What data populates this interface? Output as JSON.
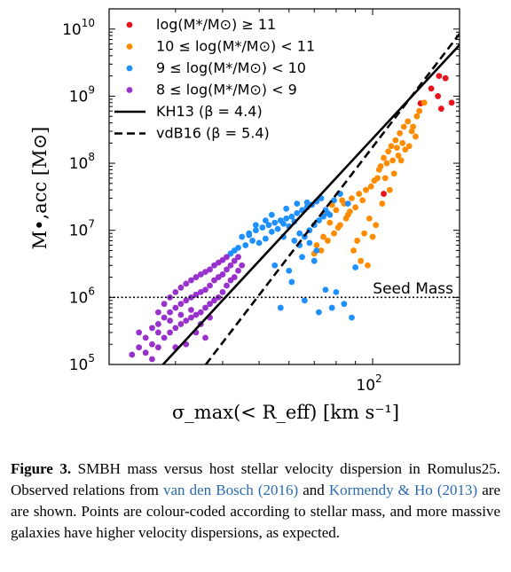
{
  "chart_data": {
    "type": "scatter",
    "title": "",
    "xlabel": "σ_max(< R_eff) [km s⁻¹]",
    "ylabel": "M•,acc [M⊙]",
    "x_scale": "log",
    "y_scale": "log",
    "xlim": [
      20,
      170
    ],
    "ylim": [
      100000,
      20000000000
    ],
    "x_ticks": [
      {
        "value": 100,
        "base": "10",
        "exp": "2"
      }
    ],
    "y_ticks": [
      {
        "value": 100000,
        "base": "10",
        "exp": "5"
      },
      {
        "value": 1000000,
        "base": "10",
        "exp": "6"
      },
      {
        "value": 10000000,
        "base": "10",
        "exp": "7"
      },
      {
        "value": 100000000,
        "base": "10",
        "exp": "8"
      },
      {
        "value": 1000000000,
        "base": "10",
        "exp": "9"
      },
      {
        "value": 10000000000,
        "base": "10",
        "exp": "10"
      }
    ],
    "grid": false,
    "legend_position": "top-left",
    "seed_mass": {
      "value": 1000000,
      "label": "Seed Mass"
    },
    "relations": [
      {
        "name": "KH13 (β = 4.4)",
        "style": "solid",
        "points": [
          [
            27.8,
            100000
          ],
          [
            170,
            5800000000
          ]
        ]
      },
      {
        "name": "vdB16 (β = 5.4)",
        "style": "dashed",
        "points": [
          [
            36.1,
            100000
          ],
          [
            170,
            8500000000
          ]
        ]
      }
    ],
    "series": [
      {
        "name": "log(M*/M⊙) ≥ 11",
        "color": "#e8141b",
        "points": [
          [
            150,
            2000000000
          ],
          [
            156,
            1850000000
          ],
          [
            162,
            800000000
          ],
          [
            143,
            1300000000
          ],
          [
            134,
            780000000
          ],
          [
            152,
            650000000
          ],
          [
            149,
            1000000000
          ],
          [
            107,
            35000000
          ]
        ]
      },
      {
        "name": "10 ≤ log(M*/M⊙) < 11",
        "color": "#ff8c00",
        "points": [
          [
            80,
            20000000
          ],
          [
            84,
            25000000
          ],
          [
            88,
            30000000
          ],
          [
            92,
            35000000
          ],
          [
            86,
            17000000
          ],
          [
            82,
            12000000
          ],
          [
            79,
            9000000
          ],
          [
            76,
            7000000
          ],
          [
            73,
            5000000
          ],
          [
            70,
            4500000
          ],
          [
            96,
            40000000
          ],
          [
            101,
            55000000
          ],
          [
            104,
            80000000
          ],
          [
            107,
            120000000
          ],
          [
            110,
            150000000
          ],
          [
            112,
            180000000
          ],
          [
            115,
            220000000
          ],
          [
            118,
            280000000
          ],
          [
            121,
            350000000
          ],
          [
            124,
            420000000
          ],
          [
            127,
            300000000
          ],
          [
            130,
            250000000
          ],
          [
            133,
            600000000
          ],
          [
            137,
            800000000
          ],
          [
            105,
            90000000
          ],
          [
            109,
            100000000
          ],
          [
            113,
            110000000
          ],
          [
            117,
            130000000
          ],
          [
            119,
            110000000
          ],
          [
            122,
            160000000
          ],
          [
            103,
            60000000
          ],
          [
            99,
            45000000
          ],
          [
            94,
            28000000
          ],
          [
            90,
            22000000
          ],
          [
            87,
            19000000
          ],
          [
            85,
            15000000
          ],
          [
            81,
            11000000
          ],
          [
            77,
            13000000
          ],
          [
            74,
            8000000
          ],
          [
            71,
            6000000
          ],
          [
            98,
            15000000
          ],
          [
            102,
            12000000
          ],
          [
            95,
            9000000
          ],
          [
            91,
            7000000
          ],
          [
            89,
            5000000
          ],
          [
            93,
            3500000
          ],
          [
            97,
            3000000
          ],
          [
            108,
            60000000
          ],
          [
            114,
            70000000
          ],
          [
            111,
            40000000
          ],
          [
            116,
            170000000
          ],
          [
            120,
            200000000
          ],
          [
            125,
            180000000
          ],
          [
            128,
            350000000
          ],
          [
            131,
            500000000
          ],
          [
            106,
            25000000
          ],
          [
            100,
            8000000
          ],
          [
            83,
            28000000
          ],
          [
            78,
            24000000
          ],
          [
            75,
            18000000
          ]
        ]
      },
      {
        "name": "9 ≤ log(M*/M⊙) < 10",
        "color": "#1e90ff",
        "points": [
          [
            45,
            8000000
          ],
          [
            47,
            9000000
          ],
          [
            49,
            10000000
          ],
          [
            51,
            11000000
          ],
          [
            53,
            12000000
          ],
          [
            55,
            13000000
          ],
          [
            57,
            14000000
          ],
          [
            59,
            15000000
          ],
          [
            61,
            16000000
          ],
          [
            63,
            18000000
          ],
          [
            65,
            20000000
          ],
          [
            67,
            22000000
          ],
          [
            69,
            24000000
          ],
          [
            71,
            27000000
          ],
          [
            73,
            30000000
          ],
          [
            75,
            20000000
          ],
          [
            77,
            17000000
          ],
          [
            48,
            7000000
          ],
          [
            50,
            6500000
          ],
          [
            52,
            7500000
          ],
          [
            54,
            9500000
          ],
          [
            56,
            10500000
          ],
          [
            58,
            12500000
          ],
          [
            60,
            11500000
          ],
          [
            62,
            13500000
          ],
          [
            64,
            9000000
          ],
          [
            66,
            8000000
          ],
          [
            68,
            10000000
          ],
          [
            70,
            12000000
          ],
          [
            72,
            14000000
          ],
          [
            74,
            16000000
          ],
          [
            76,
            18000000
          ],
          [
            44,
            5500000
          ],
          [
            46,
            6000000
          ],
          [
            42,
            4500000
          ],
          [
            43,
            5000000
          ],
          [
            55,
            3000000
          ],
          [
            60,
            2500000
          ],
          [
            65,
            4000000
          ],
          [
            70,
            3500000
          ],
          [
            57,
            700000
          ],
          [
            66,
            900000
          ],
          [
            72,
            600000
          ],
          [
            78,
            700000
          ],
          [
            84,
            800000
          ],
          [
            88,
            500000
          ],
          [
            61,
            1700000
          ],
          [
            75,
            1300000
          ],
          [
            80,
            1200000
          ],
          [
            90,
            2800000
          ],
          [
            86,
            25000000
          ],
          [
            82,
            35000000
          ],
          [
            79,
            28000000
          ],
          [
            59,
            21000000
          ],
          [
            63,
            25000000
          ],
          [
            67,
            26000000
          ],
          [
            54,
            17000000
          ],
          [
            52,
            14000000
          ],
          [
            49,
            12000000
          ],
          [
            47,
            8500000
          ],
          [
            58,
            8000000
          ],
          [
            62,
            7000000
          ],
          [
            64,
            6000000
          ],
          [
            68,
            6500000
          ],
          [
            71,
            5000000
          ]
        ]
      },
      {
        "name": "8 ≤ log(M*/M⊙) < 9",
        "color": "#9932cc",
        "points": [
          [
            25,
            150000
          ],
          [
            26,
            200000
          ],
          [
            27,
            180000
          ],
          [
            28,
            250000
          ],
          [
            29,
            300000
          ],
          [
            30,
            350000
          ],
          [
            31,
            400000
          ],
          [
            32,
            450000
          ],
          [
            33,
            500000
          ],
          [
            34,
            550000
          ],
          [
            35,
            600000
          ],
          [
            36,
            700000
          ],
          [
            37,
            800000
          ],
          [
            38,
            900000
          ],
          [
            39,
            1000000
          ],
          [
            40,
            1200000
          ],
          [
            41,
            1500000
          ],
          [
            42,
            1800000
          ],
          [
            43,
            2000000
          ],
          [
            44,
            2500000
          ],
          [
            45,
            3000000
          ],
          [
            25,
            250000
          ],
          [
            26,
            350000
          ],
          [
            27,
            400000
          ],
          [
            28,
            500000
          ],
          [
            29,
            600000
          ],
          [
            30,
            700000
          ],
          [
            31,
            800000
          ],
          [
            32,
            900000
          ],
          [
            33,
            1000000
          ],
          [
            34,
            1100000
          ],
          [
            35,
            1200000
          ],
          [
            36,
            1300000
          ],
          [
            37,
            1500000
          ],
          [
            38,
            1800000
          ],
          [
            39,
            2000000
          ],
          [
            40,
            2200000
          ],
          [
            41,
            2600000
          ],
          [
            42,
            3000000
          ],
          [
            43,
            3500000
          ],
          [
            44,
            4000000
          ],
          [
            24,
            180000
          ],
          [
            24,
            300000
          ],
          [
            23,
            140000
          ],
          [
            26,
            120000
          ],
          [
            27,
            600000
          ],
          [
            28,
            800000
          ],
          [
            29,
            1000000
          ],
          [
            30,
            1200000
          ],
          [
            31,
            1400000
          ],
          [
            32,
            1600000
          ],
          [
            33,
            1800000
          ],
          [
            34,
            2000000
          ],
          [
            35,
            2200000
          ],
          [
            36,
            2400000
          ],
          [
            37,
            2600000
          ],
          [
            38,
            3000000
          ],
          [
            39,
            3300000
          ],
          [
            40,
            3600000
          ],
          [
            41,
            4000000
          ],
          [
            27,
            300000
          ],
          [
            29,
            450000
          ],
          [
            31,
            550000
          ],
          [
            33,
            650000
          ],
          [
            35,
            400000
          ],
          [
            37,
            500000
          ],
          [
            36,
            250000
          ],
          [
            34,
            300000
          ],
          [
            32,
            200000
          ],
          [
            30,
            180000
          ]
        ]
      }
    ]
  },
  "caption": {
    "label": "Figure 3.",
    "text_1": " SMBH mass versus host stellar velocity dispersion in Romulus25. Observed relations from ",
    "cite_1": "van den Bosch (2016)",
    "text_2": " and ",
    "cite_2": "Kormendy & Ho (2013)",
    "text_3": " are are shown. Points are colour-coded according to stellar mass, and more massive galaxies have higher velocity dispersions, as expected."
  }
}
